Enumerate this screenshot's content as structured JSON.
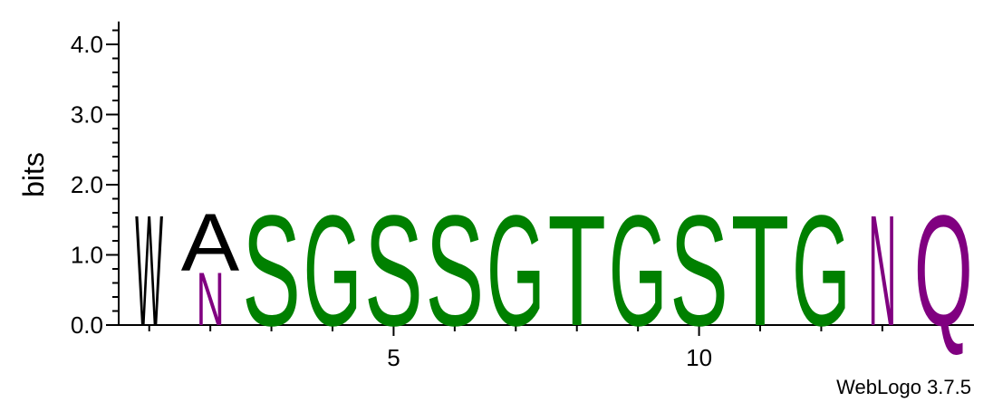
{
  "chart_data": {
    "type": "sequence-logo",
    "ylabel": "bits",
    "ylim": [
      0,
      4.3
    ],
    "yticks": [
      {
        "value": 0.0,
        "label": "0.0"
      },
      {
        "value": 1.0,
        "label": "1.0"
      },
      {
        "value": 2.0,
        "label": "2.0"
      },
      {
        "value": 3.0,
        "label": "3.0"
      },
      {
        "value": 4.0,
        "label": "4.0"
      }
    ],
    "xlim": [
      0.5,
      14.5
    ],
    "xticks": [
      {
        "value": 5,
        "label": "5"
      },
      {
        "value": 10,
        "label": "10"
      }
    ],
    "credit": "WebLogo 3.7.5",
    "colors": {
      "green": "#008000",
      "purple": "#800080",
      "black": "#000000"
    },
    "positions": [
      {
        "pos": 1,
        "stack": [
          {
            "letter": "W",
            "bits": 1.62,
            "color": "#000000"
          }
        ]
      },
      {
        "pos": 2,
        "stack": [
          {
            "letter": "N",
            "bits": 0.78,
            "color": "#800080"
          },
          {
            "letter": "A",
            "bits": 0.84,
            "color": "#000000"
          }
        ]
      },
      {
        "pos": 3,
        "stack": [
          {
            "letter": "S",
            "bits": 1.62,
            "color": "#008000"
          }
        ]
      },
      {
        "pos": 4,
        "stack": [
          {
            "letter": "G",
            "bits": 1.62,
            "color": "#008000"
          }
        ]
      },
      {
        "pos": 5,
        "stack": [
          {
            "letter": "S",
            "bits": 1.62,
            "color": "#008000"
          }
        ]
      },
      {
        "pos": 6,
        "stack": [
          {
            "letter": "S",
            "bits": 1.62,
            "color": "#008000"
          }
        ]
      },
      {
        "pos": 7,
        "stack": [
          {
            "letter": "G",
            "bits": 1.62,
            "color": "#008000"
          }
        ]
      },
      {
        "pos": 8,
        "stack": [
          {
            "letter": "T",
            "bits": 1.62,
            "color": "#008000"
          }
        ]
      },
      {
        "pos": 9,
        "stack": [
          {
            "letter": "G",
            "bits": 1.62,
            "color": "#008000"
          }
        ]
      },
      {
        "pos": 10,
        "stack": [
          {
            "letter": "S",
            "bits": 1.62,
            "color": "#008000"
          }
        ]
      },
      {
        "pos": 11,
        "stack": [
          {
            "letter": "T",
            "bits": 1.62,
            "color": "#008000"
          }
        ]
      },
      {
        "pos": 12,
        "stack": [
          {
            "letter": "G",
            "bits": 1.62,
            "color": "#008000"
          }
        ]
      },
      {
        "pos": 13,
        "stack": [
          {
            "letter": "N",
            "bits": 1.62,
            "color": "#800080"
          }
        ]
      },
      {
        "pos": 14,
        "stack": [
          {
            "letter": "Q",
            "bits": 1.62,
            "color": "#800080"
          }
        ]
      }
    ]
  }
}
